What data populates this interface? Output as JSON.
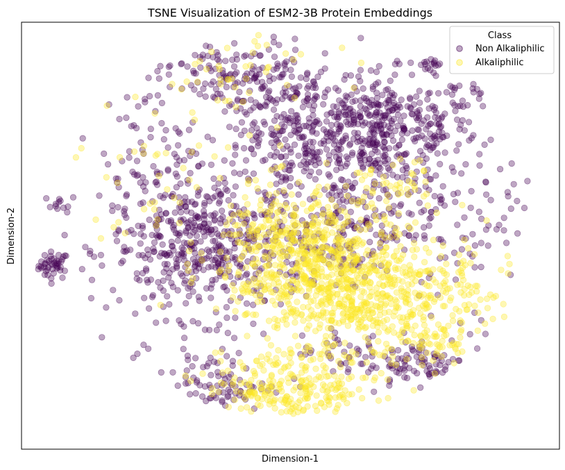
{
  "chart_data": {
    "type": "scatter",
    "title": "TSNE Visualization of ESM2-3B Protein Embeddings",
    "xlabel": "Dimension-1",
    "ylabel": "Dimension-2",
    "xticks": false,
    "yticks": false,
    "grid": false,
    "legend": {
      "title": "Class",
      "placement": "top-right"
    },
    "xlim": [
      0,
      100
    ],
    "ylim": [
      0,
      100
    ],
    "series": [
      {
        "name": "Non Alkaliphilic",
        "color": "#440154",
        "alpha": 0.35,
        "clusters": [
          {
            "cx": 6.0,
            "cy": 43.0,
            "sx": 1.4,
            "sy": 1.6,
            "n": 45
          },
          {
            "cx": 7.5,
            "cy": 57.5,
            "sx": 1.4,
            "sy": 1.0,
            "n": 12
          },
          {
            "cx": 76.0,
            "cy": 90.0,
            "sx": 1.0,
            "sy": 0.8,
            "n": 12
          },
          {
            "cx": 84.5,
            "cy": 84.0,
            "sx": 0.8,
            "sy": 0.6,
            "n": 6
          },
          {
            "cx": 67.0,
            "cy": 75.0,
            "sx": 9.0,
            "sy": 6.5,
            "n": 420
          },
          {
            "cx": 50.0,
            "cy": 74.0,
            "sx": 10.0,
            "sy": 8.0,
            "n": 300
          },
          {
            "cx": 41.0,
            "cy": 88.0,
            "sx": 7.0,
            "sy": 4.0,
            "n": 120
          },
          {
            "cx": 35.0,
            "cy": 47.0,
            "sx": 9.0,
            "sy": 8.0,
            "n": 450
          },
          {
            "cx": 61.0,
            "cy": 52.0,
            "sx": 8.0,
            "sy": 6.0,
            "n": 200
          },
          {
            "cx": 35.0,
            "cy": 15.0,
            "sx": 5.5,
            "sy": 4.0,
            "n": 80
          },
          {
            "cx": 74.0,
            "cy": 20.0,
            "sx": 5.0,
            "sy": 3.0,
            "n": 80
          },
          {
            "cx": 60.0,
            "cy": 22.0,
            "sx": 5.0,
            "sy": 3.5,
            "n": 40
          },
          {
            "cx": 85.0,
            "cy": 55.0,
            "sx": 8.0,
            "sy": 18.0,
            "n": 80
          },
          {
            "cx": 24.0,
            "cy": 62.0,
            "sx": 6.0,
            "sy": 15.0,
            "n": 120
          }
        ]
      },
      {
        "name": "Alkaliphilic",
        "color": "#fde725",
        "alpha": 0.35,
        "clusters": [
          {
            "cx": 60.0,
            "cy": 38.0,
            "sx": 9.0,
            "sy": 7.0,
            "n": 650
          },
          {
            "cx": 51.0,
            "cy": 48.0,
            "sx": 7.0,
            "sy": 7.0,
            "n": 350
          },
          {
            "cx": 50.0,
            "cy": 14.0,
            "sx": 8.0,
            "sy": 4.5,
            "n": 250
          },
          {
            "cx": 75.0,
            "cy": 25.0,
            "sx": 5.0,
            "sy": 4.0,
            "n": 80
          },
          {
            "cx": 81.0,
            "cy": 38.0,
            "sx": 5.0,
            "sy": 7.0,
            "n": 70
          },
          {
            "cx": 68.0,
            "cy": 60.0,
            "sx": 4.0,
            "sy": 4.0,
            "n": 60
          },
          {
            "cx": 40.0,
            "cy": 88.0,
            "sx": 9.0,
            "sy": 5.0,
            "n": 40
          },
          {
            "cx": 30.0,
            "cy": 60.0,
            "sx": 12.0,
            "sy": 12.0,
            "n": 60
          }
        ]
      }
    ]
  }
}
